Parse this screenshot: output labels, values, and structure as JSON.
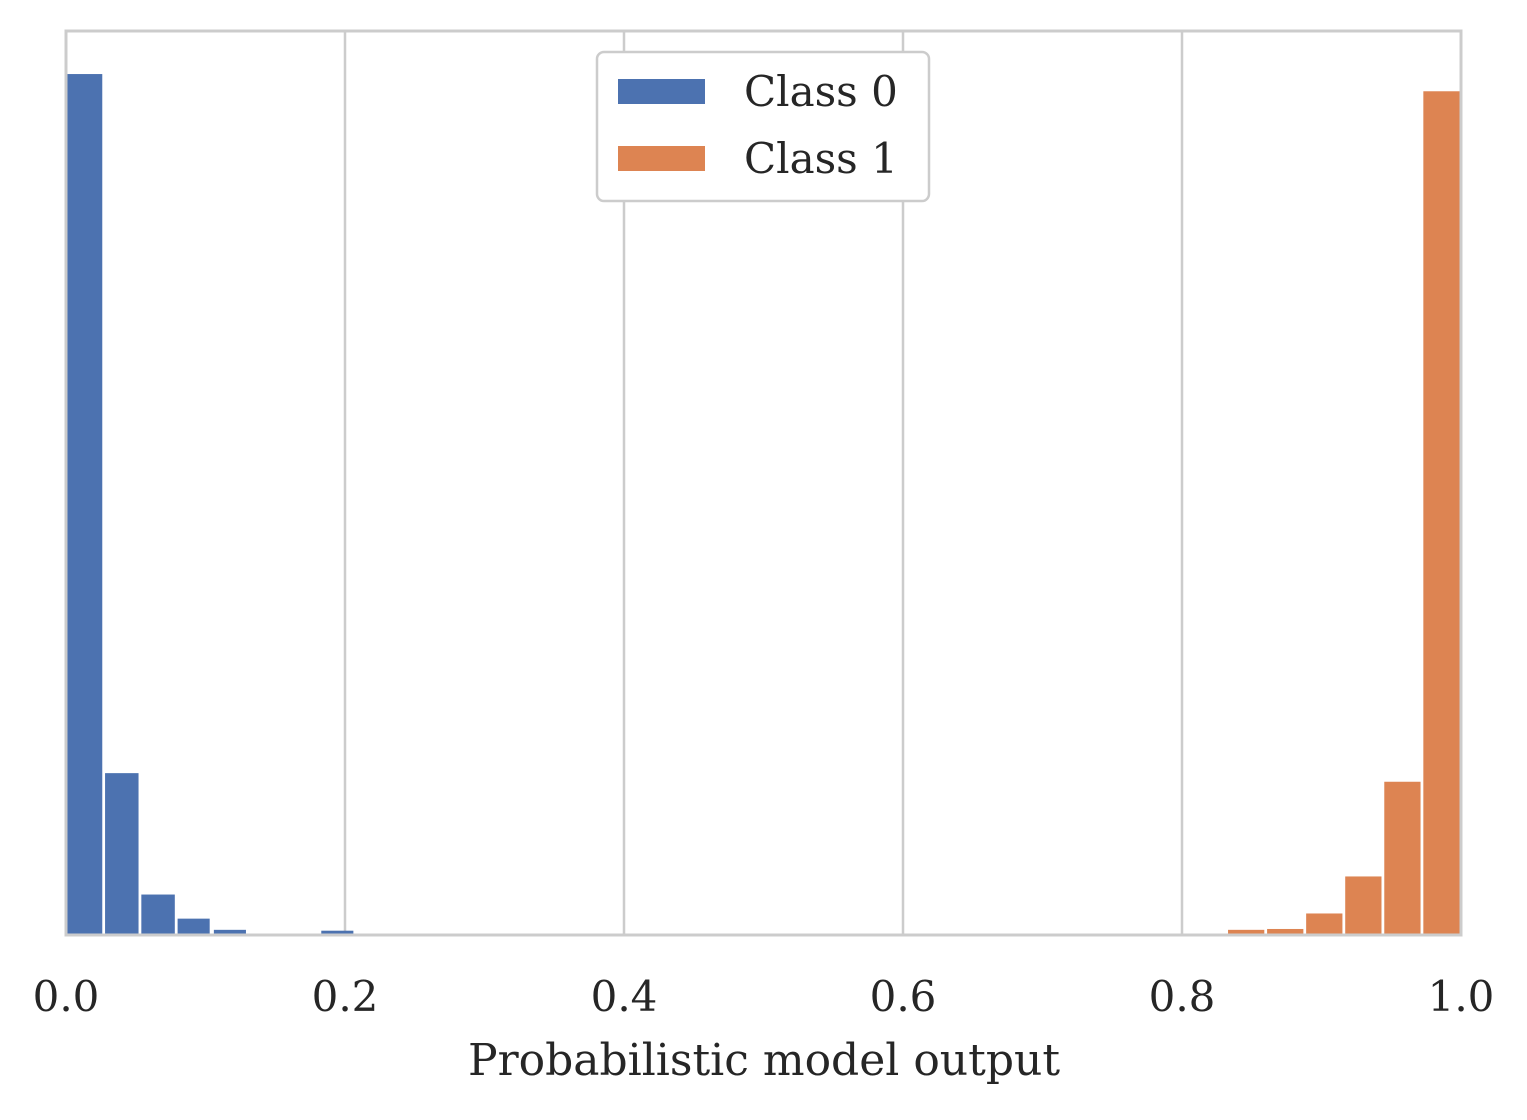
{
  "chart_data": {
    "type": "bar",
    "title": "",
    "xlabel": "Probabilistic model output",
    "ylabel": "",
    "xlim": [
      0.0,
      1.0
    ],
    "ylim": [
      0,
      1.05
    ],
    "xticks": [
      0.0,
      0.2,
      0.4,
      0.6,
      0.8,
      1.0
    ],
    "xtick_labels": [
      "0.0",
      "0.2",
      "0.4",
      "0.6",
      "0.8",
      "1.0"
    ],
    "grid": "vertical",
    "legend_position": "top-center",
    "series": [
      {
        "name": "Class 0",
        "color": "#4c72b0",
        "bins": [
          {
            "x0": 0.0,
            "x1": 0.026,
            "value": 1.0
          },
          {
            "x0": 0.028,
            "x1": 0.052,
            "value": 0.188
          },
          {
            "x0": 0.054,
            "x1": 0.078,
            "value": 0.047
          },
          {
            "x0": 0.08,
            "x1": 0.103,
            "value": 0.019
          },
          {
            "x0": 0.106,
            "x1": 0.129,
            "value": 0.006
          },
          {
            "x0": 0.183,
            "x1": 0.206,
            "value": 0.005
          }
        ]
      },
      {
        "name": "Class 1",
        "color": "#dd8452",
        "bins": [
          {
            "x0": 0.833,
            "x1": 0.859,
            "value": 0.006
          },
          {
            "x0": 0.861,
            "x1": 0.887,
            "value": 0.007
          },
          {
            "x0": 0.889,
            "x1": 0.915,
            "value": 0.025
          },
          {
            "x0": 0.917,
            "x1": 0.943,
            "value": 0.068
          },
          {
            "x0": 0.945,
            "x1": 0.971,
            "value": 0.178
          },
          {
            "x0": 0.973,
            "x1": 1.0,
            "value": 0.98
          }
        ]
      }
    ]
  }
}
